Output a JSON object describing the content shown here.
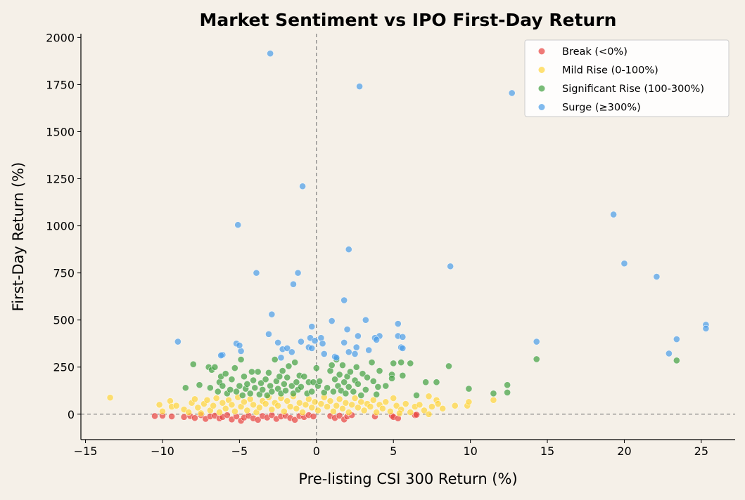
{
  "chart_data": {
    "type": "scatter",
    "title": "Market Sentiment vs IPO First-Day Return",
    "xlabel": "Pre-listing CSI 300 Return (%)",
    "ylabel": "First-Day Return (%)",
    "xlim": [
      -15.3,
      27.2
    ],
    "ylim": [
      -135,
      2020
    ],
    "xticks": [
      -15,
      -10,
      -5,
      0,
      5,
      10,
      15,
      20,
      25
    ],
    "yticks": [
      0,
      250,
      500,
      750,
      1000,
      1250,
      1500,
      1750,
      2000
    ],
    "grid": false,
    "reference_lines": {
      "x": 0,
      "y": 0,
      "style": "dashed",
      "color": "#808080"
    },
    "legend_position": "top-right",
    "series": [
      {
        "name": "Break (<0%)",
        "color": "#e8413f",
        "points": [
          [
            -10.5,
            -10
          ],
          [
            -10,
            -8
          ],
          [
            -9.4,
            -12
          ],
          [
            -8.6,
            -15
          ],
          [
            -8.2,
            -10
          ],
          [
            -7.9,
            -20
          ],
          [
            -7.5,
            -5
          ],
          [
            -7.2,
            -25
          ],
          [
            -6.9,
            -12
          ],
          [
            -6.6,
            -8
          ],
          [
            -6.3,
            -22
          ],
          [
            -6.1,
            -15
          ],
          [
            -5.8,
            -5
          ],
          [
            -5.5,
            -28
          ],
          [
            -5.2,
            -12
          ],
          [
            -4.9,
            -35
          ],
          [
            -4.7,
            -18
          ],
          [
            -4.4,
            -8
          ],
          [
            -4.1,
            -22
          ],
          [
            -3.8,
            -30
          ],
          [
            -3.5,
            -10
          ],
          [
            -3.2,
            -18
          ],
          [
            -2.9,
            -5
          ],
          [
            -2.6,
            -25
          ],
          [
            -2.3,
            -12
          ],
          [
            -2,
            -8
          ],
          [
            -1.7,
            -20
          ],
          [
            -1.4,
            -30
          ],
          [
            -1.1,
            -10
          ],
          [
            -0.8,
            -15
          ],
          [
            -0.5,
            -5
          ],
          [
            -0.2,
            -12
          ],
          [
            0.9,
            -10
          ],
          [
            1.2,
            -20
          ],
          [
            1.5,
            -8
          ],
          [
            1.8,
            -28
          ],
          [
            2,
            -12
          ],
          [
            2.3,
            -5
          ],
          [
            3.8,
            -12
          ],
          [
            4.9,
            -8
          ],
          [
            5,
            -15
          ],
          [
            5.3,
            -22
          ],
          [
            6.4,
            -5
          ],
          [
            6.5,
            -3
          ]
        ]
      },
      {
        "name": "Mild Rise (0-100%)",
        "color": "#ffd43b",
        "points": [
          [
            -13.4,
            88
          ],
          [
            -10.2,
            50
          ],
          [
            -10,
            15
          ],
          [
            -9.5,
            70
          ],
          [
            -9.4,
            40
          ],
          [
            -9.1,
            45
          ],
          [
            -8.6,
            25
          ],
          [
            -8.3,
            10
          ],
          [
            -8.1,
            60
          ],
          [
            -7.9,
            80
          ],
          [
            -7.7,
            35
          ],
          [
            -7.5,
            5
          ],
          [
            -7.3,
            55
          ],
          [
            -7.1,
            75
          ],
          [
            -6.9,
            20
          ],
          [
            -6.7,
            45
          ],
          [
            -6.5,
            85
          ],
          [
            -6.3,
            10
          ],
          [
            -6.1,
            60
          ],
          [
            -5.9,
            30
          ],
          [
            -5.7,
            75
          ],
          [
            -5.5,
            50
          ],
          [
            -5.3,
            15
          ],
          [
            -5.1,
            90
          ],
          [
            -4.9,
            40
          ],
          [
            -4.7,
            65
          ],
          [
            -4.5,
            20
          ],
          [
            -4.3,
            80
          ],
          [
            -4.1,
            50
          ],
          [
            -3.9,
            10
          ],
          [
            -3.7,
            35
          ],
          [
            -3.5,
            70
          ],
          [
            -3.3,
            55
          ],
          [
            -3.1,
            90
          ],
          [
            -2.9,
            25
          ],
          [
            -2.7,
            60
          ],
          [
            -2.5,
            45
          ],
          [
            -2.3,
            85
          ],
          [
            -2.1,
            15
          ],
          [
            -1.9,
            70
          ],
          [
            -1.7,
            40
          ],
          [
            -1.5,
            95
          ],
          [
            -1.3,
            30
          ],
          [
            -1.1,
            60
          ],
          [
            -0.9,
            10
          ],
          [
            -0.7,
            50
          ],
          [
            -0.5,
            80
          ],
          [
            -0.3,
            35
          ],
          [
            -0.1,
            65
          ],
          [
            0.1,
            20
          ],
          [
            0.3,
            55
          ],
          [
            0.5,
            90
          ],
          [
            0.7,
            40
          ],
          [
            0.9,
            70
          ],
          [
            1.1,
            15
          ],
          [
            1.3,
            45
          ],
          [
            1.5,
            80
          ],
          [
            1.7,
            30
          ],
          [
            1.9,
            60
          ],
          [
            2.1,
            10
          ],
          [
            2.3,
            50
          ],
          [
            2.5,
            85
          ],
          [
            2.7,
            35
          ],
          [
            2.9,
            65
          ],
          [
            3.1,
            20
          ],
          [
            3.3,
            55
          ],
          [
            3.5,
            40
          ],
          [
            3.7,
            75
          ],
          [
            3.9,
            10
          ],
          [
            4.1,
            50
          ],
          [
            4.3,
            30
          ],
          [
            4.5,
            65
          ],
          [
            4.8,
            15
          ],
          [
            5,
            85
          ],
          [
            5.2,
            45
          ],
          [
            5.5,
            25
          ],
          [
            5.8,
            55
          ],
          [
            6.1,
            10
          ],
          [
            6.4,
            40
          ],
          [
            6.7,
            50
          ],
          [
            7,
            20
          ],
          [
            7.3,
            95
          ],
          [
            7.5,
            40
          ],
          [
            7.8,
            75
          ],
          [
            7.9,
            55
          ],
          [
            8.2,
            30
          ],
          [
            9,
            45
          ],
          [
            9.8,
            45
          ],
          [
            9.9,
            65
          ],
          [
            11.5,
            75
          ],
          [
            7.3,
            0
          ],
          [
            5.4,
            5
          ]
        ]
      },
      {
        "name": "Significant Rise (100-300%)",
        "color": "#40a040",
        "points": [
          [
            -8.5,
            140
          ],
          [
            -8,
            265
          ],
          [
            -7.6,
            155
          ],
          [
            -7,
            250
          ],
          [
            -6.9,
            140
          ],
          [
            -6.8,
            235
          ],
          [
            -6.6,
            250
          ],
          [
            -6.4,
            120
          ],
          [
            -6.3,
            170
          ],
          [
            -6.2,
            200
          ],
          [
            -6.1,
            150
          ],
          [
            -5.9,
            215
          ],
          [
            -5.8,
            110
          ],
          [
            -5.6,
            130
          ],
          [
            -5.5,
            185
          ],
          [
            -5.3,
            245
          ],
          [
            -5.2,
            120
          ],
          [
            -5,
            150
          ],
          [
            -4.9,
            290
          ],
          [
            -4.8,
            100
          ],
          [
            -4.7,
            200
          ],
          [
            -4.6,
            135
          ],
          [
            -4.5,
            160
          ],
          [
            -4.3,
            110
          ],
          [
            -4.2,
            225
          ],
          [
            -4.1,
            180
          ],
          [
            -4,
            140
          ],
          [
            -3.8,
            225
          ],
          [
            -3.7,
            105
          ],
          [
            -3.6,
            165
          ],
          [
            -3.5,
            130
          ],
          [
            -3.3,
            185
          ],
          [
            -3.2,
            100
          ],
          [
            -3.1,
            220
          ],
          [
            -3,
            150
          ],
          [
            -2.9,
            120
          ],
          [
            -2.7,
            290
          ],
          [
            -2.6,
            175
          ],
          [
            -2.5,
            135
          ],
          [
            -2.4,
            200
          ],
          [
            -2.3,
            110
          ],
          [
            -2.2,
            230
          ],
          [
            -2.1,
            160
          ],
          [
            -2,
            125
          ],
          [
            -1.9,
            195
          ],
          [
            -1.8,
            255
          ],
          [
            -1.6,
            150
          ],
          [
            -1.5,
            110
          ],
          [
            -1.4,
            275
          ],
          [
            -1.3,
            170
          ],
          [
            -1.2,
            130
          ],
          [
            -1.1,
            205
          ],
          [
            -1,
            145
          ],
          [
            -0.8,
            200
          ],
          [
            -0.6,
            110
          ],
          [
            -0.5,
            170
          ],
          [
            -0.3,
            120
          ],
          [
            -0.2,
            170
          ],
          [
            0,
            245
          ],
          [
            0.1,
            150
          ],
          [
            0.2,
            175
          ],
          [
            0.5,
            115
          ],
          [
            0.7,
            140
          ],
          [
            0.9,
            230
          ],
          [
            1,
            260
          ],
          [
            1.1,
            120
          ],
          [
            1.2,
            185
          ],
          [
            1.3,
            290
          ],
          [
            1.4,
            150
          ],
          [
            1.5,
            210
          ],
          [
            1.6,
            125
          ],
          [
            1.7,
            260
          ],
          [
            1.8,
            170
          ],
          [
            1.9,
            110
          ],
          [
            2,
            200
          ],
          [
            2.1,
            145
          ],
          [
            2.2,
            225
          ],
          [
            2.4,
            120
          ],
          [
            2.5,
            180
          ],
          [
            2.6,
            250
          ],
          [
            2.7,
            160
          ],
          [
            2.9,
            100
          ],
          [
            3,
            215
          ],
          [
            3.2,
            130
          ],
          [
            3.3,
            195
          ],
          [
            3.6,
            275
          ],
          [
            3.7,
            175
          ],
          [
            3.9,
            105
          ],
          [
            4,
            145
          ],
          [
            4.1,
            230
          ],
          [
            4.5,
            150
          ],
          [
            4.9,
            210
          ],
          [
            4.9,
            190
          ],
          [
            5,
            270
          ],
          [
            5.5,
            275
          ],
          [
            5.6,
            205
          ],
          [
            6.1,
            270
          ],
          [
            6.5,
            100
          ],
          [
            7.1,
            170
          ],
          [
            7.8,
            170
          ],
          [
            8.6,
            255
          ],
          [
            9.9,
            135
          ],
          [
            11.5,
            110
          ],
          [
            12.4,
            155
          ],
          [
            12.4,
            115
          ],
          [
            14.3,
            292
          ],
          [
            23.4,
            285
          ]
        ]
      },
      {
        "name": "Surge (≥300%)",
        "color": "#4a9ce8",
        "points": [
          [
            -3,
            1915
          ],
          [
            2.8,
            1740
          ],
          [
            12.7,
            1705
          ],
          [
            -0.9,
            1210
          ],
          [
            -5.1,
            1005
          ],
          [
            2.1,
            875
          ],
          [
            -3.9,
            750
          ],
          [
            -1.2,
            750
          ],
          [
            -1.5,
            690
          ],
          [
            8.7,
            785
          ],
          [
            19.3,
            1060
          ],
          [
            20,
            800
          ],
          [
            22.1,
            730
          ],
          [
            1.8,
            605
          ],
          [
            -2.9,
            530
          ],
          [
            3.2,
            500
          ],
          [
            1,
            495
          ],
          [
            5.3,
            480
          ],
          [
            -0.3,
            465
          ],
          [
            25.3,
            475
          ],
          [
            25.3,
            455
          ],
          [
            2,
            450
          ],
          [
            -3.1,
            425
          ],
          [
            5.3,
            415
          ],
          [
            4.1,
            415
          ],
          [
            3.8,
            405
          ],
          [
            0.3,
            405
          ],
          [
            -9,
            385
          ],
          [
            -5.2,
            375
          ],
          [
            -4.9,
            335
          ],
          [
            -5,
            365
          ],
          [
            -2.5,
            380
          ],
          [
            -1,
            385
          ],
          [
            -0.4,
            405
          ],
          [
            -0.1,
            390
          ],
          [
            0.4,
            375
          ],
          [
            1.8,
            380
          ],
          [
            2.7,
            415
          ],
          [
            3.9,
            395
          ],
          [
            23.4,
            398
          ],
          [
            14.3,
            385
          ],
          [
            22.9,
            322
          ],
          [
            -6.1,
            315
          ],
          [
            -6.2,
            312
          ],
          [
            -2.2,
            345
          ],
          [
            -1.9,
            350
          ],
          [
            -1.6,
            330
          ],
          [
            -0.5,
            355
          ],
          [
            -0.3,
            350
          ],
          [
            0.5,
            320
          ],
          [
            1.2,
            305
          ],
          [
            1.3,
            300
          ],
          [
            2.1,
            330
          ],
          [
            2.5,
            320
          ],
          [
            2.6,
            355
          ],
          [
            3.4,
            340
          ],
          [
            5.5,
            355
          ],
          [
            5.6,
            350
          ],
          [
            5.6,
            410
          ],
          [
            -2.3,
            300
          ]
        ]
      }
    ]
  }
}
